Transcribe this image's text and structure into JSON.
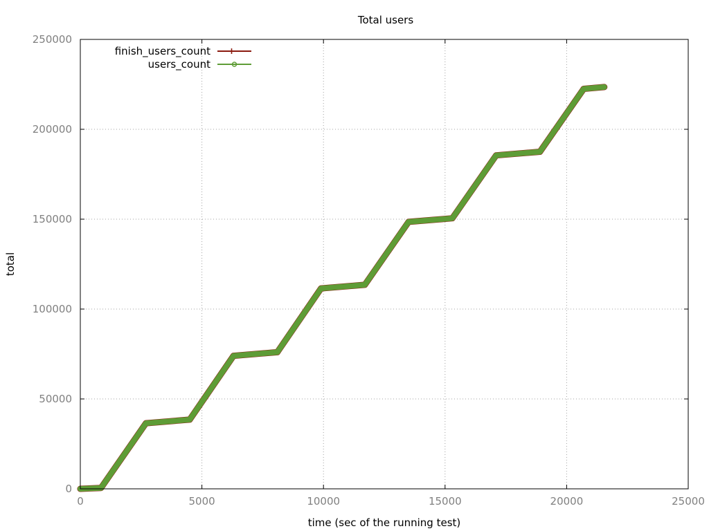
{
  "chart_data": {
    "type": "line",
    "title": "Total users",
    "xlabel": "time (sec of the running test)",
    "ylabel": "total",
    "xlim": [
      0,
      25000
    ],
    "ylim": [
      0,
      250000
    ],
    "xticks": [
      0,
      5000,
      10000,
      15000,
      20000,
      25000
    ],
    "yticks": [
      0,
      50000,
      100000,
      150000,
      200000,
      250000
    ],
    "grid": true,
    "legend_position": "top-left",
    "series": [
      {
        "name": "finish_users_count",
        "color": "#8b1a0e",
        "marker": "plus",
        "x": [
          0,
          850,
          2700,
          4500,
          6300,
          8100,
          9900,
          11700,
          13500,
          15300,
          17100,
          18900,
          20700,
          21550
        ],
        "y": [
          0,
          500,
          36500,
          38500,
          74000,
          76000,
          111500,
          113500,
          148500,
          150500,
          185500,
          187500,
          222500,
          223500
        ]
      },
      {
        "name": "users_count",
        "color": "#5e9c36",
        "marker": "circle",
        "x": [
          0,
          850,
          2700,
          4500,
          6300,
          8100,
          9900,
          11700,
          13500,
          15300,
          17100,
          18900,
          20700,
          21550
        ],
        "y": [
          0,
          500,
          36500,
          38500,
          74000,
          76000,
          111500,
          113500,
          148500,
          150500,
          185500,
          187500,
          222500,
          223500
        ]
      }
    ]
  }
}
